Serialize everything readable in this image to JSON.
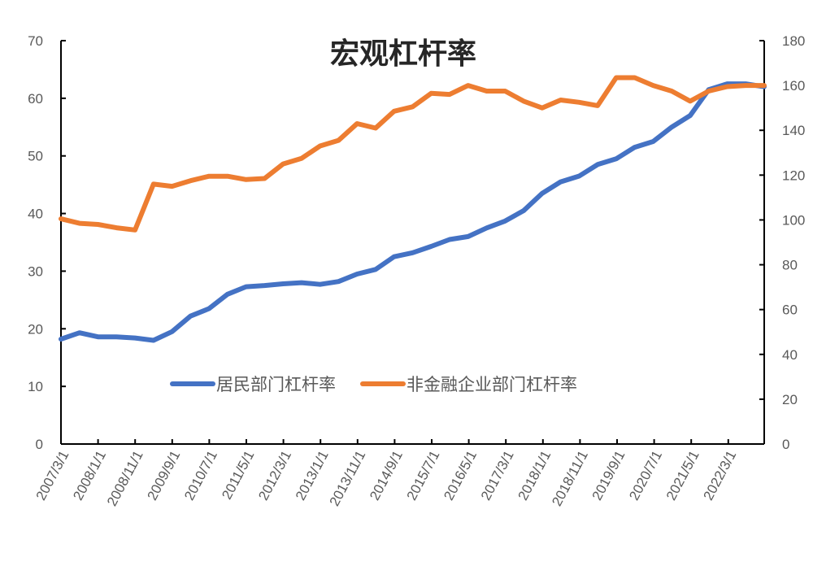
{
  "chart_data": {
    "type": "line",
    "title": "宏观杠杆率",
    "xlabel": "",
    "ylabel_left": "",
    "ylabel_right": "",
    "ylim_left": [
      0,
      70
    ],
    "ylim_right": [
      0,
      180
    ],
    "yticks_left": [
      0,
      10,
      20,
      30,
      40,
      50,
      60,
      70
    ],
    "yticks_right": [
      0,
      20,
      40,
      60,
      80,
      100,
      120,
      140,
      160,
      180
    ],
    "grid": false,
    "legend_position": "inside-bottom-center",
    "x_tick_labels": [
      "2007/3/1",
      "2008/1/1",
      "2008/11/1",
      "2009/9/1",
      "2010/7/1",
      "2011/5/1",
      "2012/3/1",
      "2013/1/1",
      "2013/11/1",
      "2014/9/1",
      "2015/7/1",
      "2016/5/1",
      "2017/3/1",
      "2018/1/1",
      "2018/11/1",
      "2019/9/1",
      "2020/7/1",
      "2021/5/1",
      "2022/3/1"
    ],
    "x": [
      0,
      0.5,
      1,
      1.5,
      2,
      2.5,
      3,
      3.5,
      4,
      4.5,
      5,
      5.5,
      6,
      6.5,
      7,
      7.5,
      8,
      8.5,
      9,
      9.5,
      10,
      10.5,
      11,
      11.5,
      12,
      12.5,
      13,
      13.5,
      14,
      14.5,
      15,
      15.5,
      16,
      16.5,
      17,
      17.5,
      18,
      18.5,
      19
    ],
    "series": [
      {
        "name": "居民部门杠杆率",
        "axis": "left",
        "color": "#4472C4",
        "values": [
          18.2,
          19.3,
          18.6,
          18.6,
          18.4,
          18.0,
          19.5,
          22.2,
          23.5,
          26.0,
          27.3,
          27.5,
          27.8,
          28.0,
          27.7,
          28.2,
          29.5,
          30.3,
          32.5,
          33.2,
          34.3,
          35.5,
          36.0,
          37.5,
          38.7,
          40.5,
          43.5,
          45.5,
          46.5,
          48.5,
          49.5,
          51.5,
          52.5,
          55.0,
          57.0,
          61.5,
          62.5,
          62.5,
          62.0
        ]
      },
      {
        "name": "非金融企业部门杠杆率",
        "axis": "right",
        "color": "#ED7D31",
        "values": [
          100.5,
          98.5,
          98.0,
          96.5,
          95.5,
          116.0,
          115.0,
          117.5,
          119.5,
          119.5,
          118.0,
          118.5,
          125.0,
          127.5,
          133.0,
          135.5,
          143.0,
          141.0,
          148.5,
          150.5,
          156.5,
          156.0,
          160.0,
          157.5,
          157.5,
          153.0,
          150.0,
          153.5,
          152.5,
          151.0,
          163.5,
          163.5,
          160.0,
          157.5,
          153.0,
          157.5,
          159.5,
          160.0,
          160.0
        ]
      }
    ]
  },
  "legend": {
    "items": [
      {
        "label": "居民部门杠杆率",
        "color": "#4472C4"
      },
      {
        "label": "非金融企业部门杠杆率",
        "color": "#ED7D31"
      }
    ]
  }
}
